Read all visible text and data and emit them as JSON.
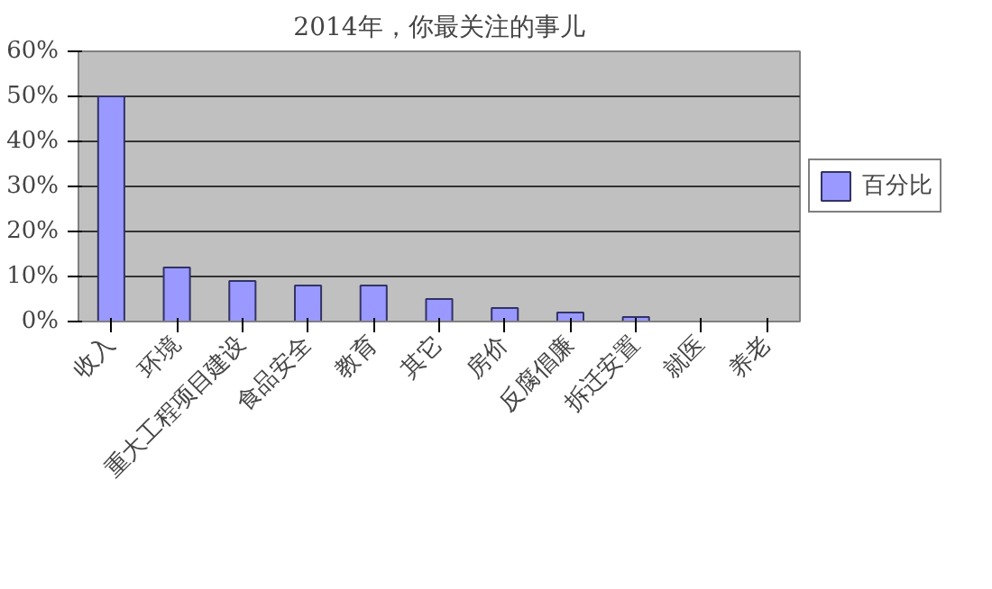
{
  "chart_data": {
    "type": "bar",
    "title": "2014年，你最关注的事儿",
    "categories": [
      "收入",
      "环境",
      "重大工程项目建设",
      "食品安全",
      "教育",
      "其它",
      "房价",
      "反腐倡廉",
      "拆迁安置",
      "就医",
      "养老"
    ],
    "series": [
      {
        "name": "百分比",
        "color": "#9999ff",
        "values": [
          50,
          12,
          9,
          8,
          8,
          5,
          3,
          2,
          1,
          0,
          0
        ]
      }
    ],
    "ylim": [
      0,
      60
    ],
    "yticks": [
      {
        "value": 0,
        "label": "0%"
      },
      {
        "value": 10,
        "label": "10%"
      },
      {
        "value": 20,
        "label": "20%"
      },
      {
        "value": 30,
        "label": "30%"
      },
      {
        "value": 40,
        "label": "40%"
      },
      {
        "value": 50,
        "label": "50%"
      },
      {
        "value": 60,
        "label": "60%"
      }
    ],
    "grid": "y",
    "legend": "right"
  }
}
